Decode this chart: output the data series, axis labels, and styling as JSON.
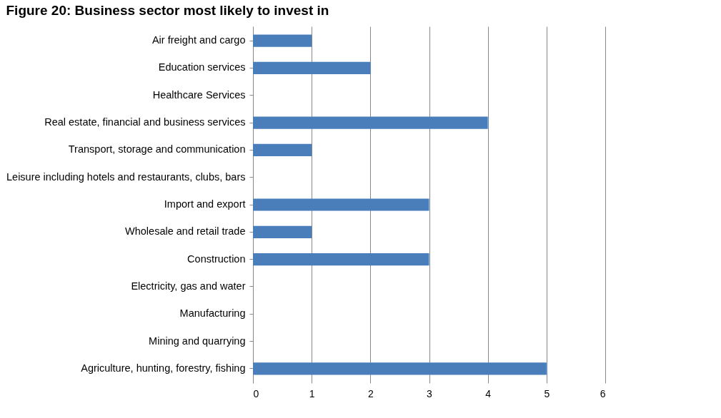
{
  "chart_data": {
    "type": "bar",
    "orientation": "horizontal",
    "title": "Figure 20: Business sector most likely to invest in",
    "categories": [
      "Air freight and cargo",
      "Education services",
      "Healthcare Services",
      "Real estate, financial and business services",
      "Transport, storage and communication",
      "Leisure including hotels and restaurants, clubs, bars",
      "Import and export",
      "Wholesale and retail trade",
      "Construction",
      "Electricity, gas and water",
      "Manufacturing",
      "Mining and quarrying",
      "Agriculture, hunting, forestry, fishing"
    ],
    "values": [
      1,
      2,
      0,
      4,
      1,
      0,
      3,
      1,
      3,
      0,
      0,
      0,
      5
    ],
    "color": "#4a7ebb",
    "xlim": [
      0,
      6
    ],
    "xticks": [
      0,
      1,
      2,
      3,
      4,
      5,
      6
    ],
    "grid": "x"
  }
}
